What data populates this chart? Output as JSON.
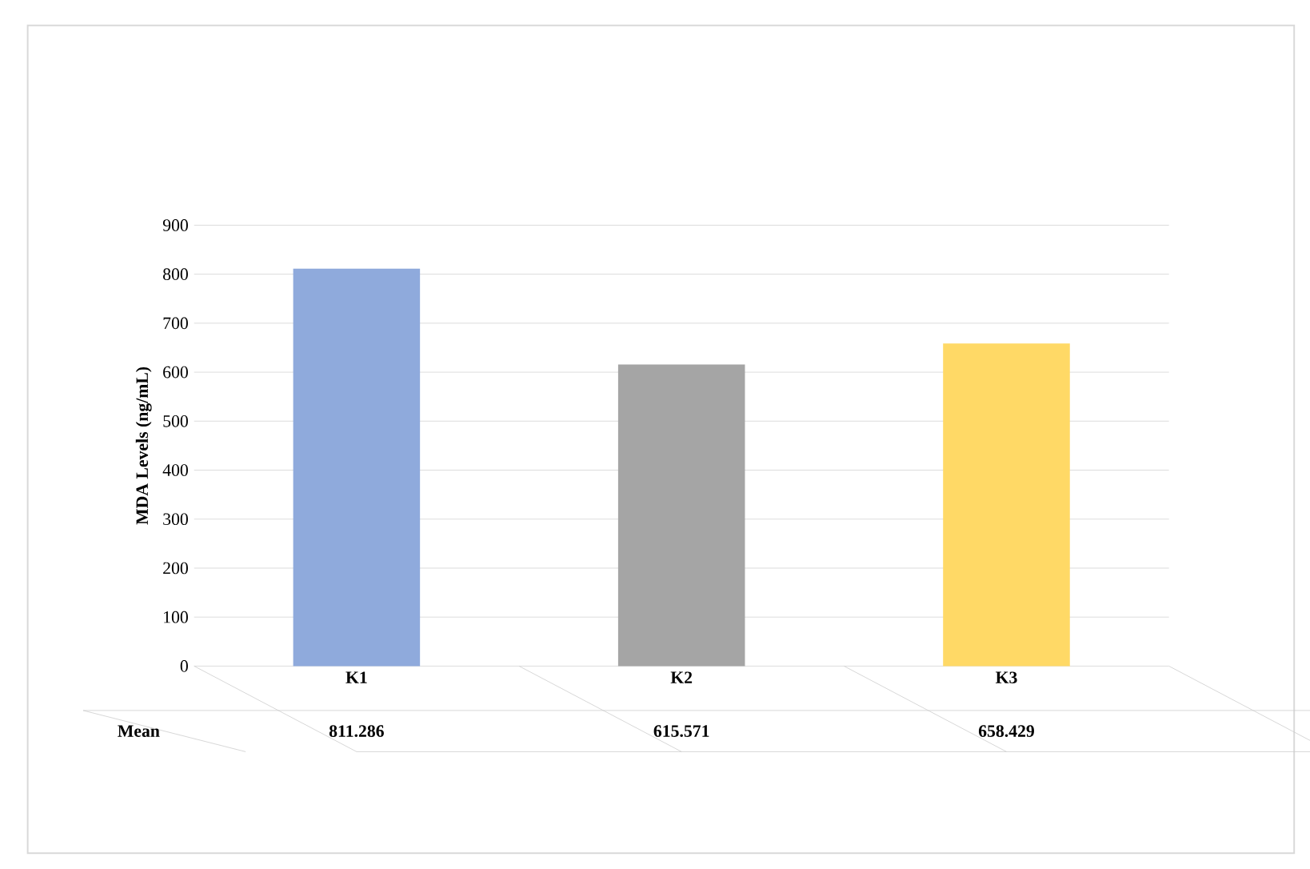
{
  "chart_data": {
    "type": "bar",
    "ylabel": "MDA Levels (ng/mL)",
    "categories": [
      "K1",
      "K2",
      "K3"
    ],
    "values": [
      811.286,
      615.571,
      658.429
    ],
    "colors": [
      "#8faadc",
      "#a5a5a5",
      "#ffd966"
    ],
    "ylim": [
      0,
      900
    ],
    "yticks": [
      0,
      100,
      200,
      300,
      400,
      500,
      600,
      700,
      800,
      900
    ],
    "grid": "y",
    "data_labels": true,
    "annotations": [
      "Mean"
    ]
  }
}
